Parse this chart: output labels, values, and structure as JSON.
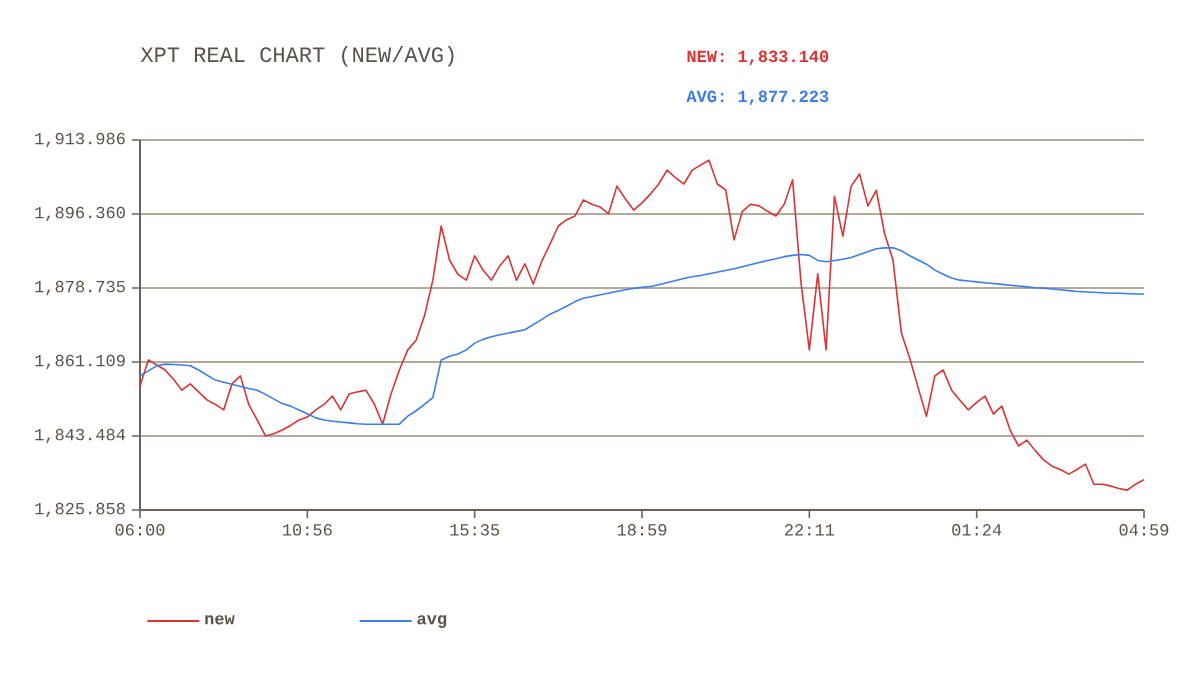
{
  "chart_data": {
    "type": "line",
    "title": "XPT REAL CHART (NEW/AVG)",
    "annotations": [
      "NEW: 1,833.140",
      "AVG: 1,877.223"
    ],
    "categories": [
      "06:00",
      null,
      null,
      null,
      null,
      null,
      null,
      null,
      null,
      null,
      null,
      null,
      null,
      null,
      null,
      null,
      null,
      null,
      null,
      null,
      "10:56",
      null,
      null,
      null,
      null,
      null,
      null,
      null,
      null,
      null,
      null,
      null,
      null,
      null,
      null,
      null,
      null,
      null,
      null,
      null,
      "15:35",
      null,
      null,
      null,
      null,
      null,
      null,
      null,
      null,
      null,
      null,
      null,
      null,
      null,
      null,
      null,
      null,
      null,
      null,
      null,
      "18:59",
      null,
      null,
      null,
      null,
      null,
      null,
      null,
      null,
      null,
      null,
      null,
      null,
      null,
      null,
      null,
      null,
      null,
      null,
      null,
      "22:11",
      null,
      null,
      null,
      null,
      null,
      null,
      null,
      null,
      null,
      null,
      null,
      null,
      null,
      null,
      null,
      null,
      null,
      null,
      null,
      "01:24",
      null,
      null,
      null,
      null,
      null,
      null,
      null,
      null,
      null,
      null,
      null,
      null,
      null,
      null,
      null,
      null,
      null,
      null,
      null,
      "04:59"
    ],
    "ylim": [
      1825.858,
      1913.986
    ],
    "yticks": [
      {
        "value": 1825.858,
        "label": "1,825.858"
      },
      {
        "value": 1843.484,
        "label": "1,843.484"
      },
      {
        "value": 1861.109,
        "label": "1,861.109"
      },
      {
        "value": 1878.735,
        "label": "1,878.735"
      },
      {
        "value": 1896.36,
        "label": "1,896.360"
      },
      {
        "value": 1913.986,
        "label": "1,913.986"
      }
    ],
    "grid": "y",
    "legend": "bottom",
    "marker": "none",
    "line_style": "solid",
    "series": [
      {
        "name": "new",
        "color": "#d93333",
        "values": [
          1855.4,
          1861.6,
          1860.4,
          1859.2,
          1857,
          1854.4,
          1855.9,
          1854,
          1852.1,
          1851,
          1849.7,
          1855.9,
          1857.8,
          1851,
          1847.3,
          1843.5,
          1844,
          1844.9,
          1846,
          1847.3,
          1848,
          1849.7,
          1851,
          1853.0,
          1849.7,
          1853.5,
          1854,
          1854.4,
          1851.1,
          1846.3,
          1853.5,
          1859.2,
          1864.0,
          1866.3,
          1872.1,
          1880.6,
          1893.5,
          1885.4,
          1882,
          1880.6,
          1886.4,
          1883,
          1880.6,
          1884,
          1886.4,
          1880.6,
          1884.5,
          1879.7,
          1885,
          1889.2,
          1893.5,
          1895,
          1895.9,
          1899.7,
          1898.7,
          1898,
          1896.4,
          1903.0,
          1900,
          1897.3,
          1899,
          1901.1,
          1903.5,
          1906.8,
          1905,
          1903.5,
          1906.8,
          1908,
          1909.2,
          1903.5,
          1902.1,
          1890.2,
          1897,
          1898.7,
          1898.3,
          1897,
          1895.9,
          1898.7,
          1904.5,
          1880,
          1864.0,
          1882.1,
          1864.0,
          1900.6,
          1891.1,
          1903,
          1905.9,
          1898.3,
          1902,
          1891.6,
          1885.4,
          1868,
          1862,
          1855,
          1848.2,
          1857.8,
          1859.2,
          1854.4,
          1852,
          1849.7,
          1851.5,
          1853.0,
          1848.7,
          1850.6,
          1844.9,
          1841.1,
          1842.5,
          1840,
          1837.8,
          1836.3,
          1835.5,
          1834.4,
          1835.5,
          1836.8,
          1832.0,
          1832,
          1831.6,
          1831,
          1830.6,
          1832,
          1833.1
        ]
      },
      {
        "name": "avg",
        "color": "#3a7de6",
        "values": [
          1857.8,
          1859.0,
          1860.2,
          1860.6,
          1860.5,
          1860.4,
          1860.2,
          1859.2,
          1858.0,
          1856.8,
          1856.3,
          1855.8,
          1855.3,
          1854.8,
          1854.4,
          1853.4,
          1852.3,
          1851.2,
          1850.6,
          1849.7,
          1848.8,
          1847.8,
          1847.3,
          1847.0,
          1846.8,
          1846.6,
          1846.4,
          1846.3,
          1846.3,
          1846.3,
          1846.3,
          1846.3,
          1848.2,
          1849.5,
          1851.0,
          1852.6,
          1861.6,
          1862.5,
          1863.0,
          1864.0,
          1865.6,
          1866.5,
          1867.1,
          1867.6,
          1868.0,
          1868.4,
          1868.8,
          1870.0,
          1871.2,
          1872.5,
          1873.4,
          1874.4,
          1875.5,
          1876.3,
          1876.7,
          1877.1,
          1877.5,
          1877.9,
          1878.3,
          1878.6,
          1878.9,
          1879.1,
          1879.5,
          1880.0,
          1880.5,
          1881.0,
          1881.4,
          1881.7,
          1882.1,
          1882.5,
          1882.9,
          1883.3,
          1883.8,
          1884.3,
          1884.8,
          1885.3,
          1885.7,
          1886.2,
          1886.5,
          1886.7,
          1886.5,
          1885.3,
          1885.0,
          1885.3,
          1885.6,
          1886.0,
          1886.7,
          1887.4,
          1888.1,
          1888.3,
          1888.3,
          1887.6,
          1886.4,
          1885.4,
          1884.4,
          1883.0,
          1882.0,
          1881.1,
          1880.6,
          1880.4,
          1880.2,
          1880.0,
          1879.8,
          1879.6,
          1879.4,
          1879.2,
          1879.0,
          1878.8,
          1878.7,
          1878.5,
          1878.3,
          1878.1,
          1877.9,
          1877.8,
          1877.7,
          1877.6,
          1877.5,
          1877.5,
          1877.4,
          1877.3,
          1877.3
        ]
      }
    ]
  }
}
